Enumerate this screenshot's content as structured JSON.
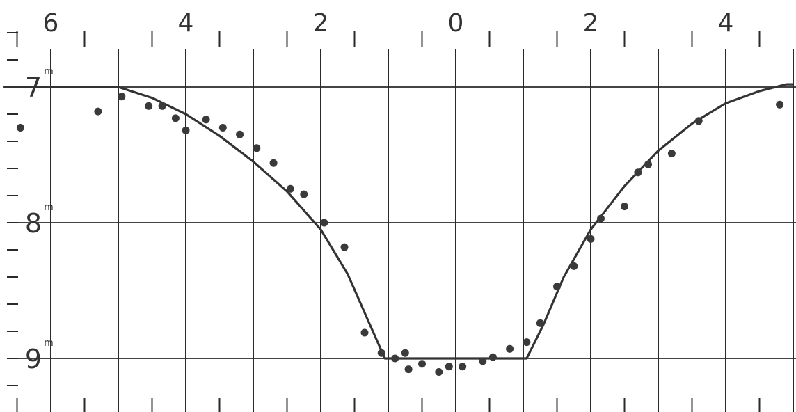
{
  "chart_data": {
    "type": "scatter",
    "title": "",
    "xlabel": "",
    "ylabel": "",
    "x_tick_labels": [
      "6",
      "4",
      "2",
      "0",
      "2",
      "4"
    ],
    "x_tick_values": [
      -6,
      -4,
      -2,
      0,
      2,
      4
    ],
    "y_tick_labels": [
      {
        "value": 7,
        "text": "7",
        "sup": "m"
      },
      {
        "value": 8,
        "text": "8",
        "sup": "m"
      },
      {
        "value": 9,
        "text": "9",
        "sup": "m"
      }
    ],
    "xlim": [
      -6.7,
      5
    ],
    "ylim": [
      6.6,
      9.38
    ],
    "y_inverted": true,
    "grid": true,
    "curve": {
      "x": [
        -6.7,
        -5,
        -4.5,
        -4,
        -3.5,
        -3,
        -2.5,
        -2,
        -1.6,
        -1.3,
        -1.05,
        1.05,
        1.3,
        1.6,
        2,
        2.5,
        3,
        3.5,
        4,
        4.5,
        4.9,
        5
      ],
      "y": [
        7.0,
        7.0,
        7.08,
        7.2,
        7.36,
        7.55,
        7.77,
        8.05,
        8.38,
        8.72,
        9.0,
        9.0,
        8.75,
        8.4,
        8.05,
        7.73,
        7.47,
        7.27,
        7.12,
        7.03,
        6.98,
        6.98
      ]
    },
    "points": {
      "x": [
        -6.45,
        -5.3,
        -4.95,
        -4.55,
        -4.35,
        -4.15,
        -4.0,
        -3.7,
        -3.45,
        -3.2,
        -2.95,
        -2.7,
        -2.45,
        -2.25,
        -1.95,
        -1.65,
        -1.35,
        -1.1,
        -0.9,
        -0.75,
        -0.7,
        -0.5,
        -0.25,
        -0.1,
        0.1,
        0.4,
        0.55,
        0.8,
        1.05,
        1.25,
        1.5,
        1.75,
        2.0,
        2.15,
        2.5,
        2.7,
        2.85,
        3.2,
        3.6,
        4.8
      ],
      "y": [
        7.3,
        7.18,
        7.07,
        7.14,
        7.14,
        7.23,
        7.32,
        7.24,
        7.3,
        7.35,
        7.45,
        7.56,
        7.75,
        7.79,
        8.0,
        8.18,
        8.81,
        8.96,
        9.0,
        8.96,
        9.08,
        9.04,
        9.1,
        9.06,
        9.06,
        9.02,
        8.99,
        8.93,
        8.88,
        8.74,
        8.47,
        8.32,
        8.12,
        7.97,
        7.88,
        7.63,
        7.57,
        7.49,
        7.25,
        7.13
      ]
    }
  }
}
